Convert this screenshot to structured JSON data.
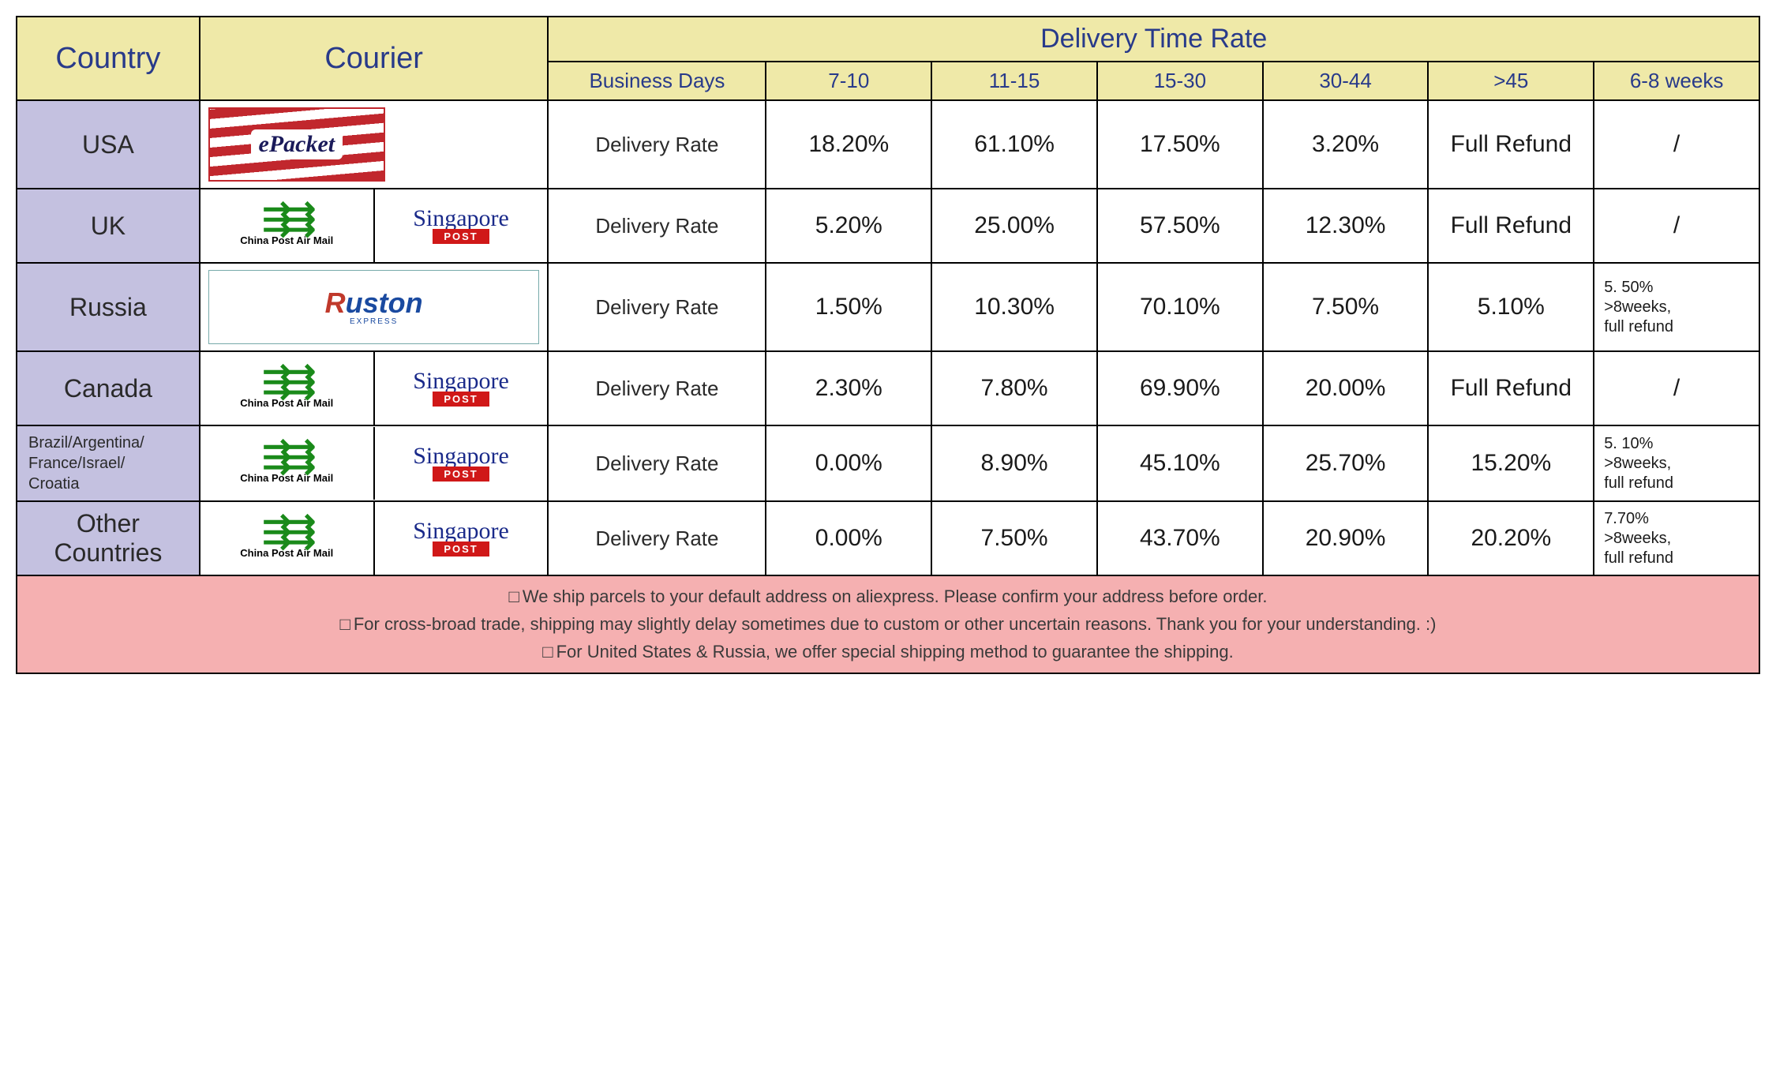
{
  "type": "table",
  "colors": {
    "header_bg": "#efe9a8",
    "header_text": "#283a8a",
    "country_bg": "#c4c1e0",
    "cell_bg": "#ffffff",
    "footer_bg": "#f5b0b1",
    "border": "#000000"
  },
  "fonts": {
    "header_large_pt": 38,
    "subheader_pt": 26,
    "country_pt": 32,
    "cell_pt": 30,
    "footer_pt": 22
  },
  "columns": {
    "country": "Country",
    "courier": "Courier",
    "delivery_header": "Delivery Time Rate",
    "business_days": "Business Days",
    "range_7_10": "7-10",
    "range_11_15": "11-15",
    "range_15_30": "15-30",
    "range_30_44": "30-44",
    "range_gt45": ">45",
    "range_6_8w": "6-8 weeks"
  },
  "rate_label": "Delivery Rate",
  "rows": [
    {
      "country": "USA",
      "country_small": false,
      "couriers": [
        "epacket"
      ],
      "r7_10": "18.20%",
      "r11_15": "61.10%",
      "r15_30": "17.50%",
      "r30_44": "3.20%",
      "rgt45": "Full Refund",
      "r6_8w": "/"
    },
    {
      "country": "UK",
      "country_small": false,
      "couriers": [
        "chinapost",
        "singapore"
      ],
      "r7_10": "5.20%",
      "r11_15": "25.00%",
      "r15_30": "57.50%",
      "r30_44": "12.30%",
      "rgt45": "Full Refund",
      "r6_8w": "/"
    },
    {
      "country": "Russia",
      "country_small": false,
      "couriers": [
        "ruston"
      ],
      "r7_10": "1.50%",
      "r11_15": "10.30%",
      "r15_30": "70.10%",
      "r30_44": "7.50%",
      "rgt45": "5.10%",
      "r6_8w": "5. 50%\n>8weeks,\nfull refund",
      "r6_8w_small": true
    },
    {
      "country": "Canada",
      "country_small": false,
      "couriers": [
        "chinapost",
        "singapore"
      ],
      "r7_10": "2.30%",
      "r11_15": "7.80%",
      "r15_30": "69.90%",
      "r30_44": "20.00%",
      "rgt45": "Full Refund",
      "r6_8w": "/"
    },
    {
      "country": "Brazil/Argentina/\nFrance/Israel/\nCroatia",
      "country_small": true,
      "couriers": [
        "chinapost",
        "singapore"
      ],
      "r7_10": "0.00%",
      "r11_15": "8.90%",
      "r15_30": "45.10%",
      "r30_44": "25.70%",
      "rgt45": "15.20%",
      "r6_8w": "5. 10%\n>8weeks,\nfull refund",
      "r6_8w_small": true
    },
    {
      "country": "Other Countries",
      "country_small": false,
      "couriers": [
        "chinapost",
        "singapore"
      ],
      "r7_10": "0.00%",
      "r11_15": "7.50%",
      "r15_30": "43.70%",
      "r30_44": "20.90%",
      "rgt45": "20.20%",
      "r6_8w": "7.70%\n>8weeks,\nfull refund",
      "r6_8w_small": true
    }
  ],
  "footer": {
    "line1": "We ship parcels to your default address on aliexpress. Please confirm your address before order.",
    "line2": "For cross-broad trade, shipping may slightly delay sometimes due to custom or other uncertain reasons. Thank you for your understanding. :)",
    "line3": "For United States & Russia, we offer special shipping method to guarantee the shipping."
  },
  "courier_labels": {
    "epacket": "ePacket",
    "chinapost_label": "China Post Air Mail",
    "singapore_script": "Singapore",
    "singapore_post": "POST",
    "ruston_name": "Ruston",
    "ruston_sub": "EXPRESS"
  }
}
